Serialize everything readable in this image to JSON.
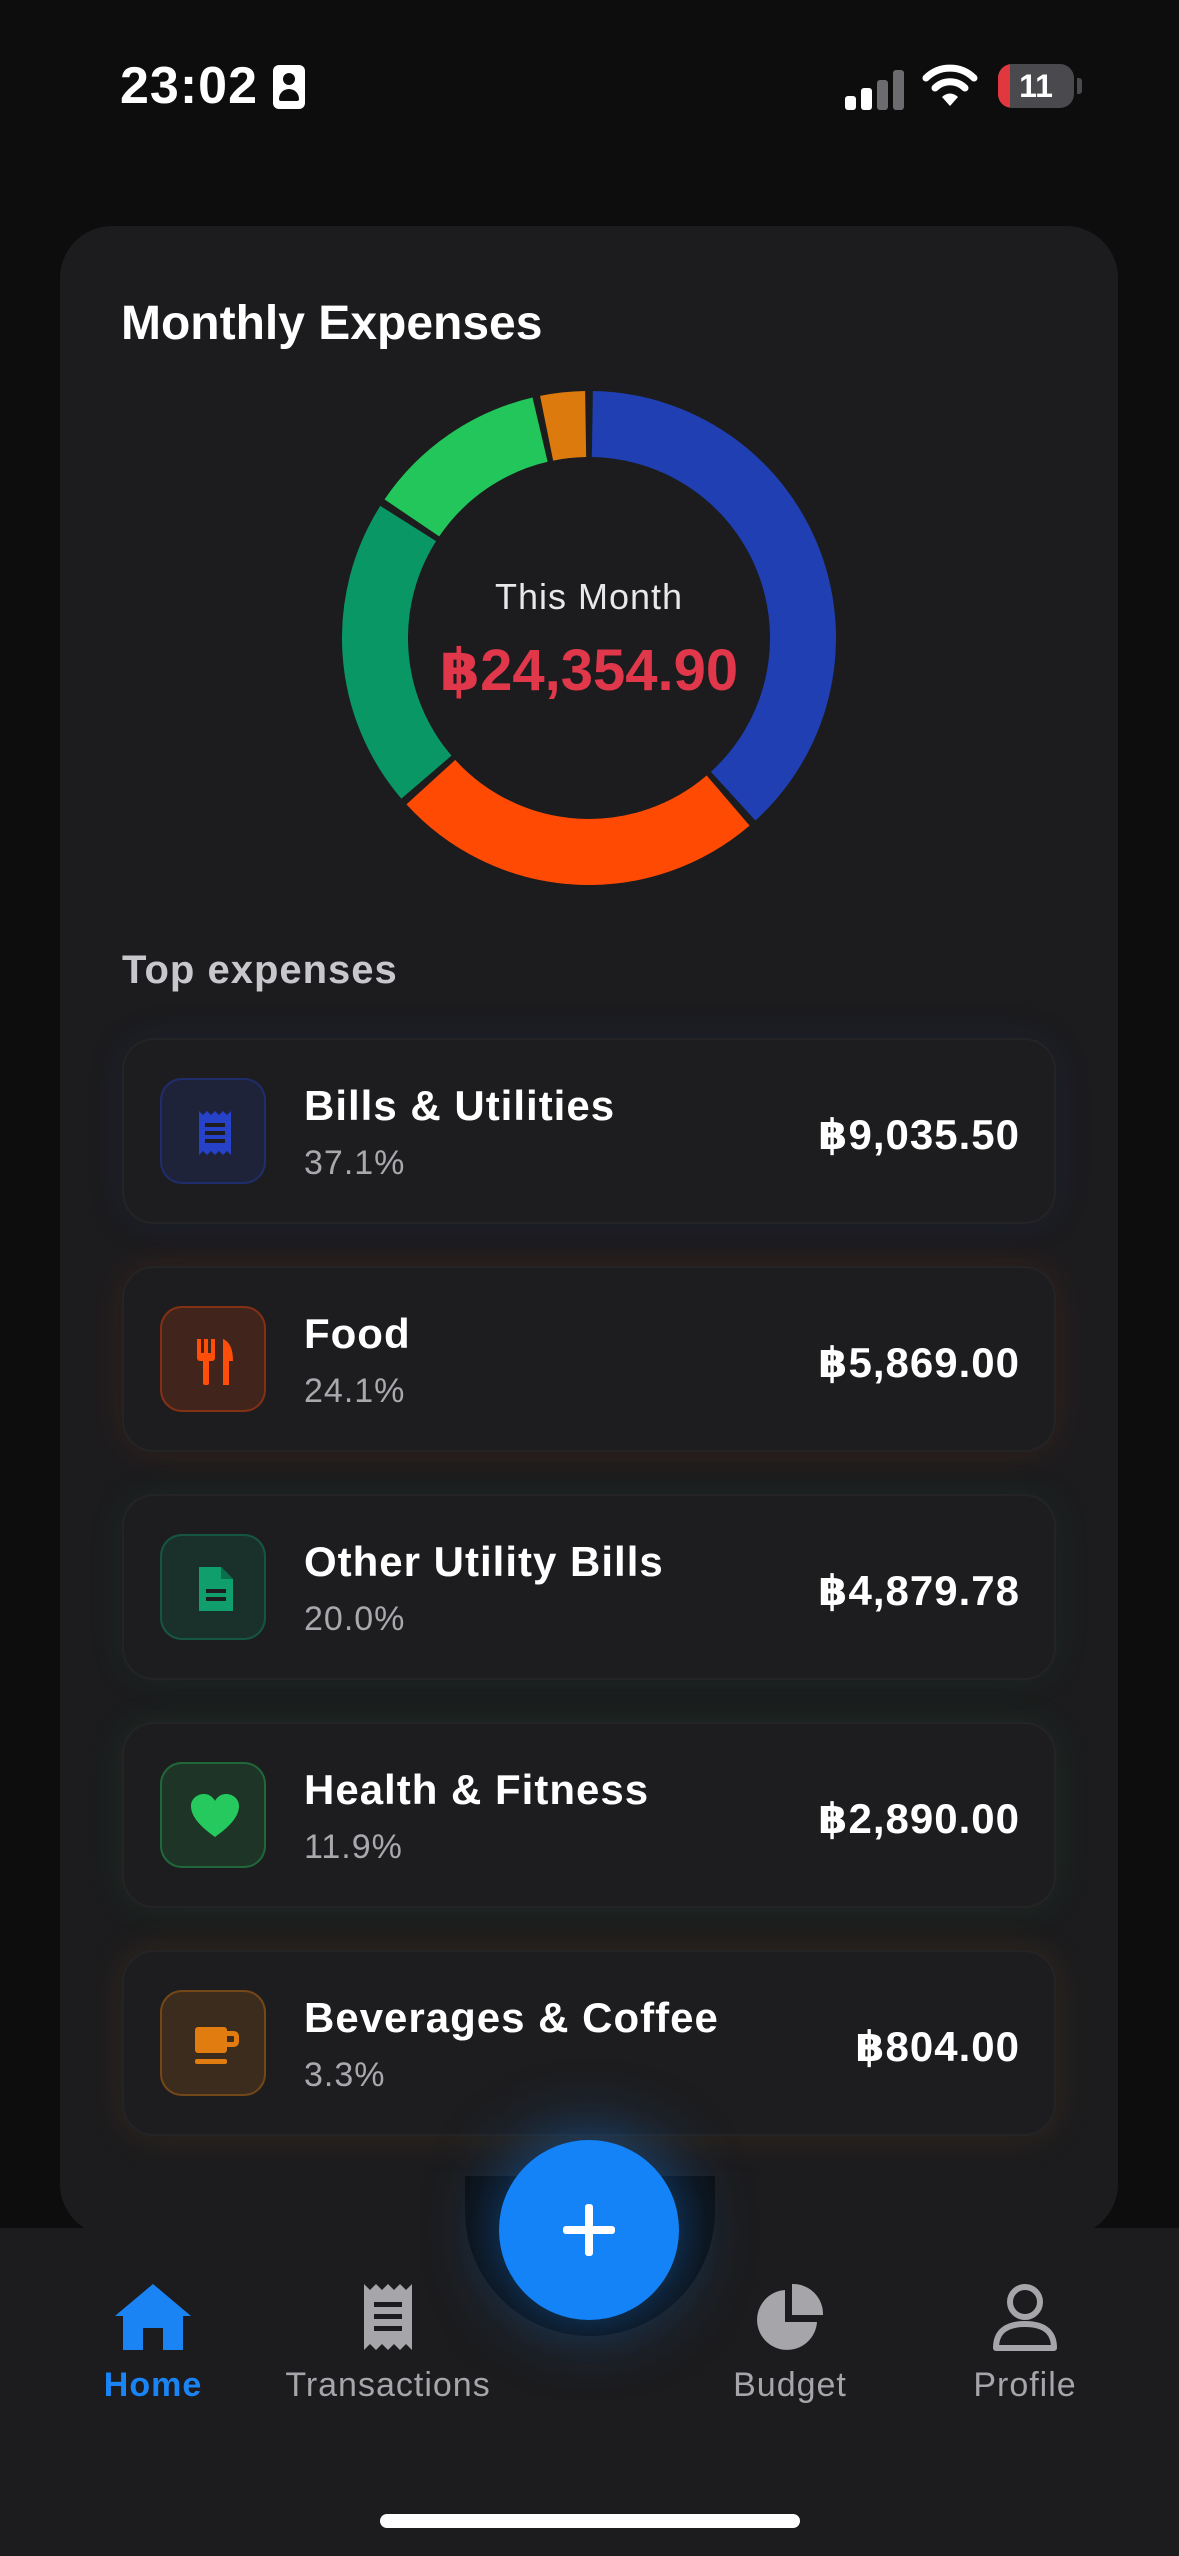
{
  "status_bar": {
    "time": "23:02",
    "battery_level": "11",
    "icons": [
      "contact-card-icon",
      "cellular-signal-icon",
      "wifi-icon",
      "battery-icon"
    ]
  },
  "card": {
    "title": "Monthly Expenses",
    "center_label": "This Month",
    "center_amount": "฿24,354.90"
  },
  "chart_data": {
    "type": "pie",
    "categories": [
      "Bills & Utilities",
      "Food",
      "Other Utility Bills",
      "Health & Fitness",
      "Beverages & Coffee"
    ],
    "values": [
      37.1,
      24.1,
      20.0,
      11.9,
      3.3
    ],
    "colors": [
      "#1f3fb3",
      "#ff4a04",
      "#0a9766",
      "#22c65a",
      "#dd7a0d"
    ]
  },
  "top_expenses": {
    "title": "Top expenses",
    "items": [
      {
        "name": "Bills & Utilities",
        "percent": "37.1%",
        "amount": "฿9,035.50",
        "icon": "receipt-icon",
        "color": "#2642c9"
      },
      {
        "name": "Food",
        "percent": "24.1%",
        "amount": "฿5,869.00",
        "icon": "utensils-icon",
        "color": "#ff4d0a"
      },
      {
        "name": "Other Utility Bills",
        "percent": "20.0%",
        "amount": "฿4,879.78",
        "icon": "document-icon",
        "color": "#0f9e6c"
      },
      {
        "name": "Health & Fitness",
        "percent": "11.9%",
        "amount": "฿2,890.00",
        "icon": "heart-icon",
        "color": "#26c95e"
      },
      {
        "name": "Beverages & Coffee",
        "percent": "3.3%",
        "amount": "฿804.00",
        "icon": "coffee-cup-icon",
        "color": "#e07c10"
      }
    ]
  },
  "tab_bar": {
    "tabs": [
      {
        "label": "Home",
        "icon": "home-icon",
        "active": true
      },
      {
        "label": "Transactions",
        "icon": "receipt-icon",
        "active": false
      },
      {
        "label": "Budget",
        "icon": "pie-chart-icon",
        "active": false
      },
      {
        "label": "Profile",
        "icon": "person-icon",
        "active": false
      }
    ],
    "fab_icon": "plus-icon"
  }
}
